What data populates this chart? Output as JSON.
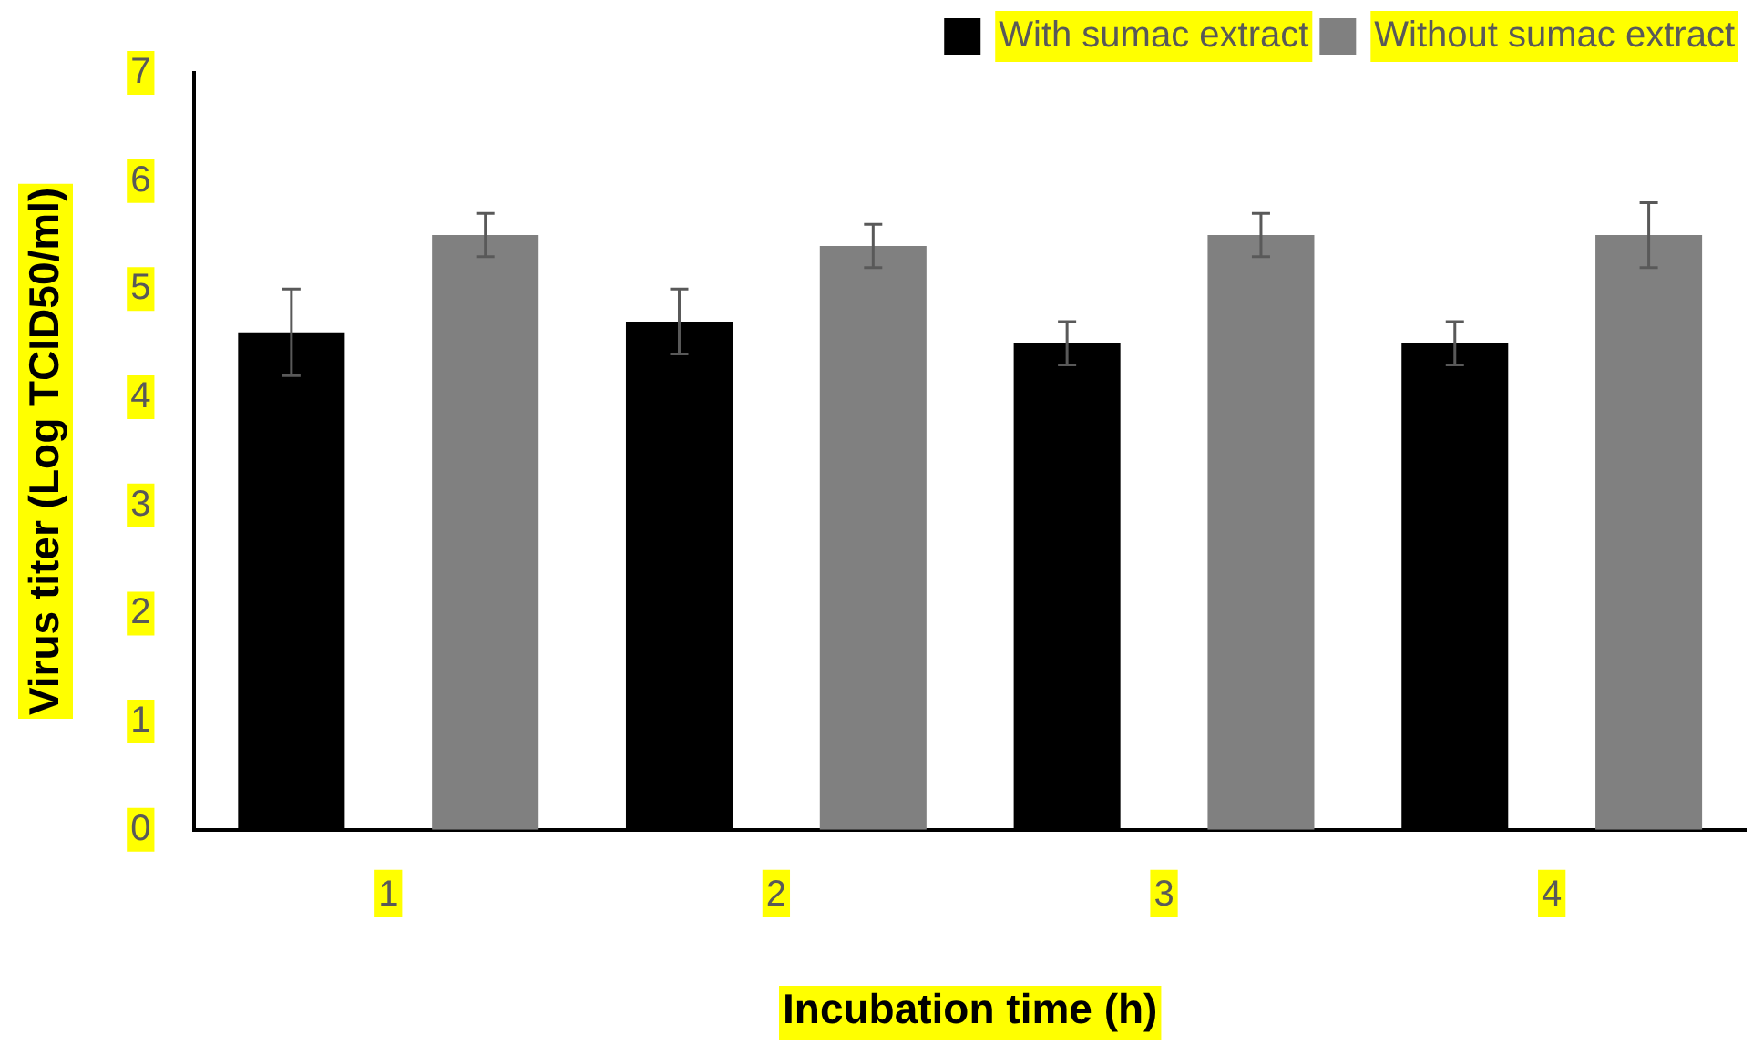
{
  "chart_data": {
    "type": "bar",
    "xlabel": "Incubation time (h)",
    "ylabel": "Virus titer (Log TCID50/ml)",
    "categories": [
      "1",
      "2",
      "3",
      "4"
    ],
    "series": [
      {
        "name": "With sumac extract",
        "color": "#000000",
        "values": [
          4.6,
          4.7,
          4.5,
          4.5
        ],
        "errors": [
          0.4,
          0.3,
          0.2,
          0.2
        ]
      },
      {
        "name": "Without sumac extract",
        "color": "#808080",
        "values": [
          5.5,
          5.4,
          5.5,
          5.5
        ],
        "errors": [
          0.2,
          0.2,
          0.2,
          0.3
        ]
      }
    ],
    "ylim": [
      0,
      7
    ],
    "yticks": [
      0,
      1,
      2,
      3,
      4,
      5,
      6,
      7
    ],
    "grid": false,
    "legend": "top right"
  }
}
